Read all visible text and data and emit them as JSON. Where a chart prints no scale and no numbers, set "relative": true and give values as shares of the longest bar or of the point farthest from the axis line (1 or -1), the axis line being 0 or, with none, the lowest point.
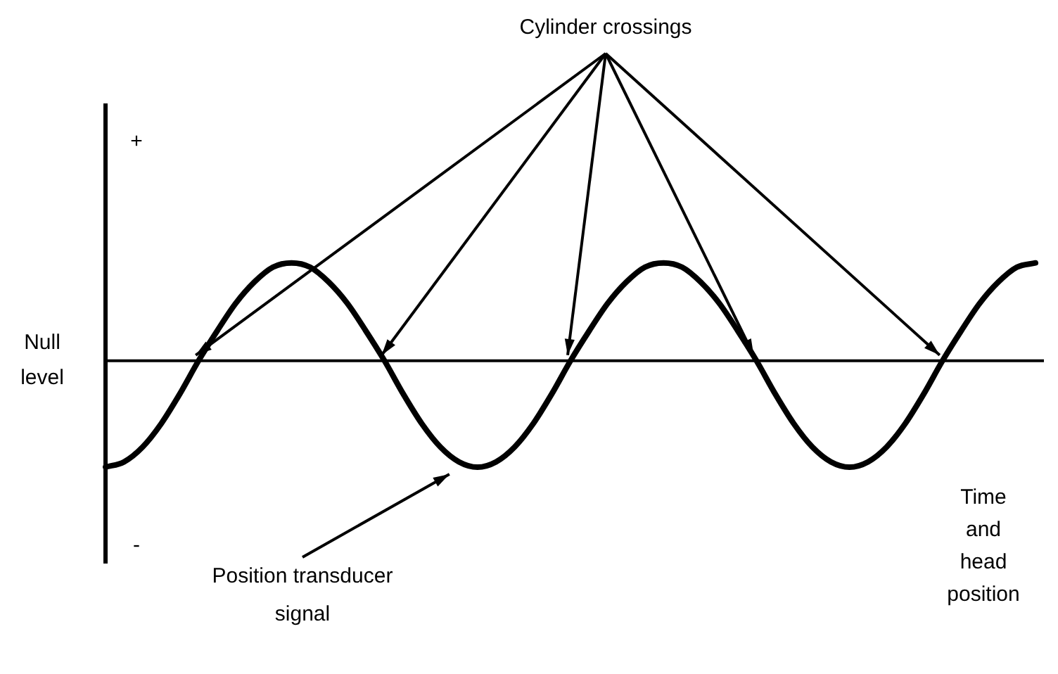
{
  "chart_data": {
    "type": "line",
    "relative": true,
    "xlabel": "Time and head position",
    "categories": [
      null,
      null,
      null,
      null,
      null,
      null,
      null,
      null,
      null,
      null,
      null,
      null,
      null,
      null,
      null,
      null,
      null,
      null,
      null,
      null,
      null,
      null,
      null,
      null,
      null,
      null,
      null,
      null,
      null,
      null,
      null,
      null,
      null,
      null,
      null,
      null,
      null,
      null,
      null,
      null,
      null,
      null,
      null,
      null,
      null,
      null,
      null,
      null,
      null,
      null,
      null
    ],
    "values": [
      -1,
      -0.95,
      -0.81,
      -0.59,
      -0.31,
      0,
      0.28,
      0.54,
      0.74,
      0.88,
      0.92,
      0.88,
      0.74,
      0.54,
      0.28,
      0,
      -0.31,
      -0.59,
      -0.81,
      -0.95,
      -1,
      -0.95,
      -0.81,
      -0.59,
      -0.31,
      0,
      0.28,
      0.54,
      0.74,
      0.88,
      0.92,
      0.88,
      0.74,
      0.54,
      0.28,
      0,
      -0.31,
      -0.59,
      -0.81,
      -0.95,
      -1,
      -0.95,
      -0.81,
      -0.59,
      -0.31,
      0,
      0.28,
      0.54,
      0.74,
      0.88,
      0.92
    ],
    "color": "#000000",
    "marker": "none",
    "line_style": "solid",
    "ref_lines": [
      {
        "axis": "y",
        "value": 0,
        "label": "Null level",
        "color": "#000000"
      }
    ],
    "annotations": [
      "Cylinder crossings",
      "Position transducer signal",
      "+",
      "-"
    ]
  }
}
